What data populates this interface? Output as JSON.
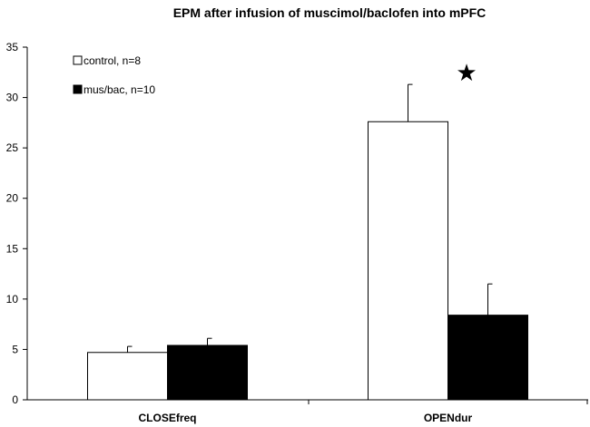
{
  "chart_data": {
    "type": "bar",
    "title": "EPM after infusion of muscimol/baclofen into mPFC",
    "xlabel": "",
    "ylabel": "",
    "categories": [
      "CLOSEfreq",
      "OPENdur"
    ],
    "ylim": [
      0,
      35
    ],
    "yticks": [
      0,
      5,
      10,
      15,
      20,
      25,
      30,
      35
    ],
    "grid": false,
    "legend_position": "top-left",
    "series": [
      {
        "name": "control, n=8",
        "values": [
          4.7,
          27.6
        ],
        "errors": [
          0.6,
          3.7
        ],
        "color": "#ffffff",
        "stroke": "#000000"
      },
      {
        "name": "mus/bac, n=10",
        "values": [
          5.4,
          8.4
        ],
        "errors": [
          0.7,
          3.1
        ],
        "color": "#000000",
        "stroke": "#000000"
      }
    ],
    "annotations": [
      {
        "symbol": "★",
        "category": "OPENdur",
        "meaning": "significance-star"
      }
    ]
  }
}
